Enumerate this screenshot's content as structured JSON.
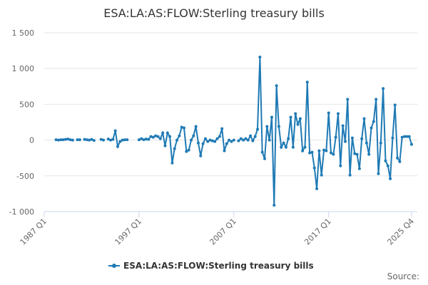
{
  "chart_data": {
    "type": "line",
    "title": "ESA:LA:AS:FLOW:Sterling treasury bills",
    "source": "Source:",
    "categories": [
      "1987 Q1",
      null,
      null,
      null,
      null,
      null,
      null,
      null,
      null,
      null,
      null,
      null,
      null,
      null,
      null,
      null,
      null,
      null,
      null,
      null,
      null,
      null,
      null,
      null,
      null,
      null,
      null,
      null,
      null,
      null,
      null,
      null,
      null,
      null,
      null,
      null,
      null,
      null,
      null,
      null,
      "1997 Q1",
      null,
      null,
      null,
      null,
      null,
      null,
      null,
      null,
      null,
      null,
      null,
      null,
      null,
      null,
      null,
      null,
      null,
      null,
      null,
      null,
      null,
      null,
      null,
      null,
      null,
      null,
      null,
      null,
      null,
      null,
      null,
      null,
      null,
      null,
      null,
      null,
      null,
      null,
      null,
      "2007 Q1",
      null,
      null,
      null,
      null,
      null,
      null,
      null,
      null,
      null,
      null,
      null,
      null,
      null,
      null,
      null,
      null,
      null,
      null,
      null,
      null,
      null,
      null,
      null,
      null,
      null,
      null,
      null,
      null,
      null,
      null,
      null,
      null,
      null,
      null,
      null,
      null,
      null,
      null,
      null,
      "2017 Q1",
      null,
      null,
      null,
      null,
      null,
      null,
      null,
      null,
      null,
      null,
      null,
      null,
      null,
      null,
      null,
      null,
      null,
      null,
      null,
      null,
      null,
      null,
      null,
      null,
      null,
      null,
      null,
      null,
      null,
      null,
      null,
      null,
      null,
      null,
      "2025 Q4"
    ],
    "series": [
      {
        "name": "ESA:LA:AS:FLOW:Sterling treasury bills",
        "color": "#1f7ab5",
        "values": [
          null,
          null,
          null,
          null,
          null,
          5,
          0,
          5,
          5,
          10,
          15,
          5,
          0,
          null,
          5,
          5,
          null,
          10,
          5,
          0,
          10,
          -5,
          null,
          null,
          10,
          0,
          null,
          15,
          0,
          10,
          130,
          -90,
          -20,
          0,
          5,
          5,
          null,
          null,
          null,
          null,
          5,
          20,
          5,
          15,
          10,
          50,
          40,
          60,
          50,
          20,
          100,
          -80,
          100,
          50,
          -320,
          -120,
          0,
          60,
          180,
          170,
          -160,
          -140,
          0,
          60,
          190,
          -40,
          -220,
          -50,
          20,
          -20,
          0,
          -10,
          -20,
          20,
          50,
          160,
          -150,
          -50,
          0,
          -20,
          0,
          null,
          -10,
          20,
          0,
          20,
          0,
          60,
          -10,
          50,
          150,
          1160,
          -170,
          -260,
          190,
          0,
          320,
          -910,
          760,
          190,
          -100,
          -40,
          -100,
          20,
          320,
          -100,
          370,
          220,
          300,
          -150,
          -100,
          810,
          -180,
          -170,
          -390,
          -680,
          -150,
          -490,
          -140,
          -150,
          380,
          -180,
          -200,
          40,
          370,
          -360,
          200,
          -20,
          570,
          -490,
          30,
          -190,
          -200,
          -400,
          20,
          300,
          -40,
          -200,
          170,
          260,
          570,
          -470,
          -40,
          720,
          -290,
          -360,
          -540,
          30,
          490,
          -250,
          -300,
          40,
          50,
          50,
          50,
          -60
        ]
      }
    ],
    "ylim": [
      -1000,
      1500
    ],
    "yticks": [
      {
        "value": -1000,
        "label": "-1 000"
      },
      -500,
      0,
      500,
      {
        "value": 1000,
        "label": "1 000"
      },
      {
        "value": 1500,
        "label": "1 500"
      }
    ],
    "grid": true
  }
}
